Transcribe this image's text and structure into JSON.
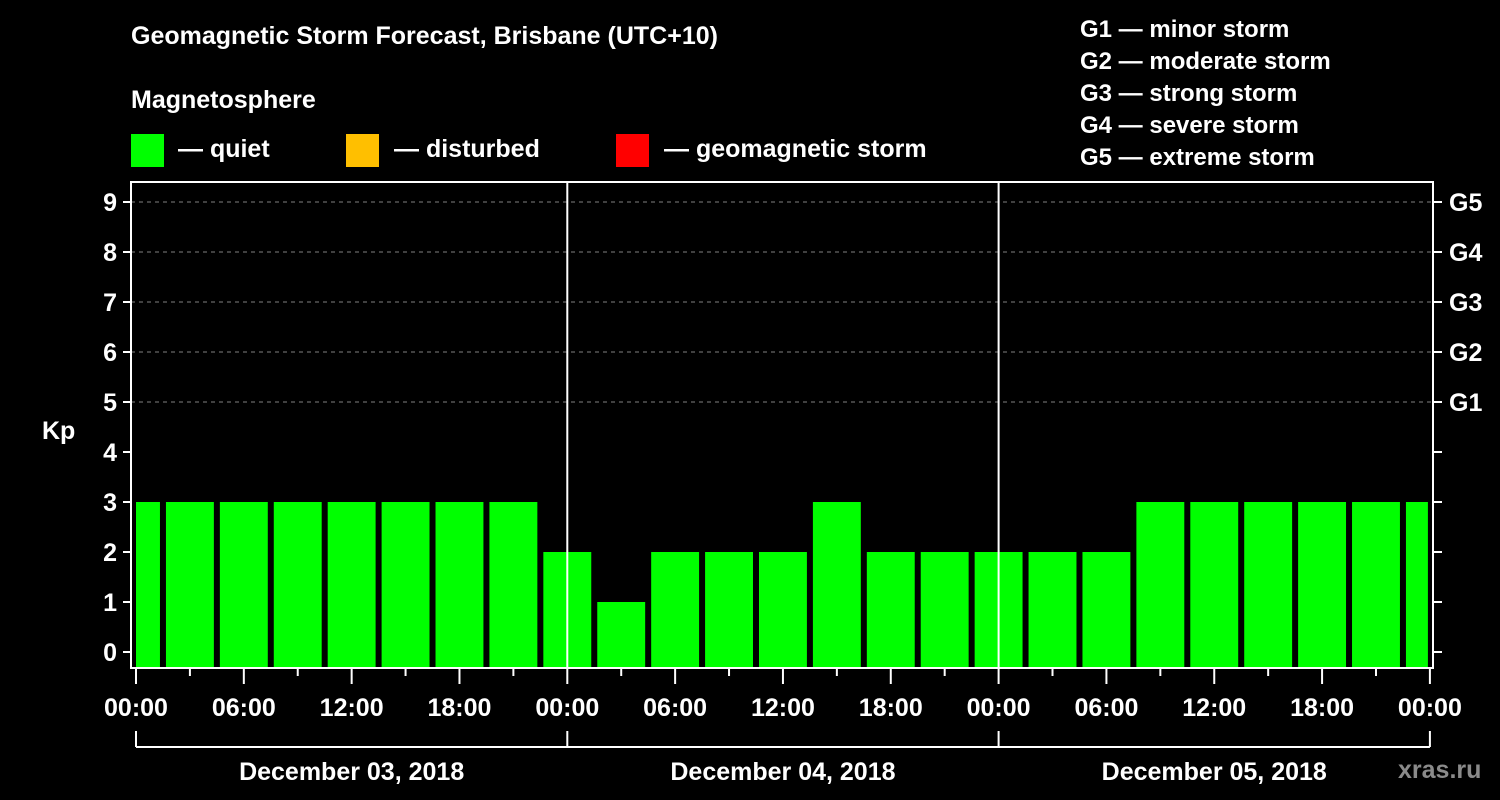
{
  "chart_data": {
    "type": "bar",
    "title": "Geomagnetic Storm Forecast, Brisbane (UTC+10)",
    "subtitle": "Magnetosphere",
    "ylabel": "Kp",
    "xlabel": "",
    "ylim": [
      0,
      9
    ],
    "yticks": [
      0,
      1,
      2,
      3,
      4,
      5,
      6,
      7,
      8,
      9
    ],
    "y2_labels": [
      {
        "kp": 5,
        "label": "G1"
      },
      {
        "kp": 6,
        "label": "G2"
      },
      {
        "kp": 7,
        "label": "G3"
      },
      {
        "kp": 8,
        "label": "G4"
      },
      {
        "kp": 9,
        "label": "G5"
      }
    ],
    "grid": "dashed horizontal at Kp 5-9",
    "x_tick_labels": [
      "00:00",
      "06:00",
      "12:00",
      "18:00",
      "00:00",
      "06:00",
      "12:00",
      "18:00",
      "00:00",
      "06:00",
      "12:00",
      "18:00",
      "00:00"
    ],
    "day_labels": [
      "December 03, 2018",
      "December 04, 2018",
      "December 05, 2018"
    ],
    "interval_hours": 3,
    "categories": [
      "Dec 03 00:00",
      "Dec 03 01:30",
      "Dec 03 04:30",
      "Dec 03 07:30",
      "Dec 03 10:30",
      "Dec 03 13:30",
      "Dec 03 16:30",
      "Dec 03 19:30",
      "Dec 03 22:30",
      "Dec 04 01:30",
      "Dec 04 04:30",
      "Dec 04 07:30",
      "Dec 04 10:30",
      "Dec 04 13:30",
      "Dec 04 16:30",
      "Dec 04 19:30",
      "Dec 04 22:30",
      "Dec 05 01:30",
      "Dec 05 04:30",
      "Dec 05 07:30",
      "Dec 05 10:30",
      "Dec 05 13:30",
      "Dec 05 16:30",
      "Dec 05 19:30",
      "Dec 05 22:30"
    ],
    "values": [
      3,
      3,
      3,
      3,
      3,
      3,
      3,
      3,
      2,
      1,
      2,
      2,
      2,
      3,
      2,
      2,
      2,
      2,
      2,
      3,
      3,
      3,
      3,
      3,
      3
    ],
    "bar_colors": {
      "quiet": "#00ff00",
      "disturbed": "#ffbf00",
      "geomagnetic_storm": "#ff0000"
    },
    "legend": [
      {
        "label": "— quiet",
        "color": "#00ff00"
      },
      {
        "label": "— disturbed",
        "color": "#ffbf00"
      },
      {
        "label": "— geomagnetic storm",
        "color": "#ff0000"
      }
    ],
    "legend_position": "top-left"
  },
  "header": {
    "title": "Geomagnetic Storm Forecast, Brisbane (UTC+10)",
    "subtitle": "Magnetosphere"
  },
  "legend": {
    "quiet": "— quiet",
    "disturbed": "— disturbed",
    "storm": "— geomagnetic storm"
  },
  "scale": [
    "G1 — minor storm",
    "G2 — moderate storm",
    "G3 — strong storm",
    "G4 — severe storm",
    "G5 — extreme storm"
  ],
  "watermark": "xras.ru"
}
